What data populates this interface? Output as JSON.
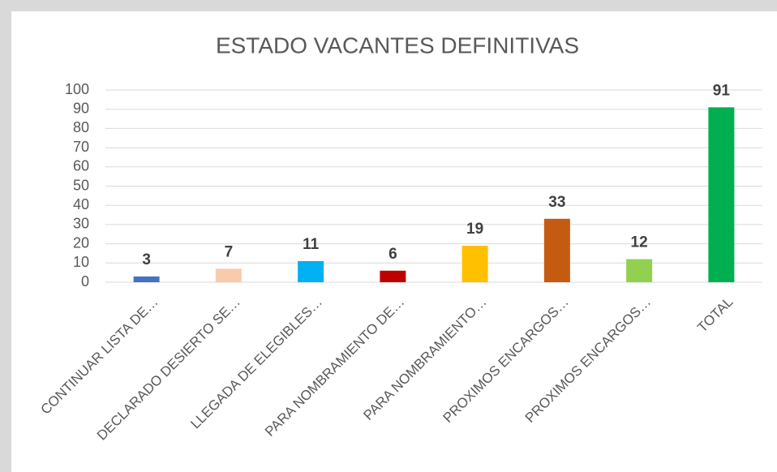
{
  "chart_data": {
    "type": "bar",
    "title": "ESTADO VACANTES DEFINITIVAS",
    "categories": [
      "CONTINUAR LISTA DE…",
      "DECLARADO DESIERTO SE…",
      "LLEGADA DE ELEGIBLES…",
      "PARA NOMBRAMIENTO DE…",
      "PARA NOMBRAMIENTO…",
      "PROXIMOS ENCARGOS…",
      "PROXIMOS ENCARGOS…",
      "TOTAL"
    ],
    "values": [
      3,
      7,
      11,
      6,
      19,
      33,
      12,
      91
    ],
    "colors": [
      "#4472c4",
      "#f8cbad",
      "#00b0f0",
      "#c00000",
      "#ffc000",
      "#c55a11",
      "#92d050",
      "#00b050"
    ],
    "ylim": [
      0,
      100
    ],
    "yticks": [
      0,
      10,
      20,
      30,
      40,
      50,
      60,
      70,
      80,
      90,
      100
    ],
    "grid": true
  }
}
